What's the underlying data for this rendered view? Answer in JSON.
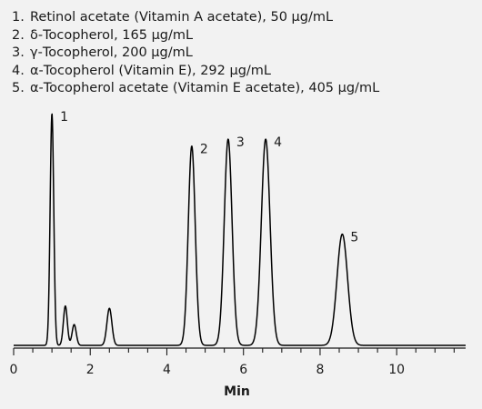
{
  "chart_data": {
    "type": "line",
    "title": "",
    "xlabel": "Min",
    "ylabel": "",
    "xlim": [
      0,
      11.8
    ],
    "ylim": [
      0,
      100
    ],
    "x_ticks": [
      0,
      2,
      4,
      6,
      8,
      10
    ],
    "grid": false,
    "legend": [
      {
        "number": "1.",
        "text": "Retinol acetate (Vitamin A acetate), 50 µg/mL"
      },
      {
        "number": "2.",
        "text": "δ-Tocopherol, 165 µg/mL"
      },
      {
        "number": "3.",
        "text": "γ-Tocopherol, 200 µg/mL"
      },
      {
        "number": "4.",
        "text": "α-Tocopherol (Vitamin E), 292 µg/mL"
      },
      {
        "number": "5.",
        "text": "α-Tocopherol acetate (Vitamin E acetate), 405 µg/mL"
      }
    ],
    "peaks": [
      {
        "label": "1",
        "retention_time": 1.0,
        "height": 100
      },
      {
        "label": "2",
        "retention_time": 4.65,
        "height": 86
      },
      {
        "label": "3",
        "retention_time": 5.6,
        "height": 89
      },
      {
        "label": "4",
        "retention_time": 6.58,
        "height": 89
      },
      {
        "label": "5",
        "retention_time": 8.58,
        "height": 48
      }
    ],
    "minor_peaks": [
      {
        "retention_time": 1.35,
        "height": 17
      },
      {
        "retention_time": 1.58,
        "height": 9
      },
      {
        "retention_time": 2.5,
        "height": 16
      }
    ],
    "line_color": "#000000"
  }
}
